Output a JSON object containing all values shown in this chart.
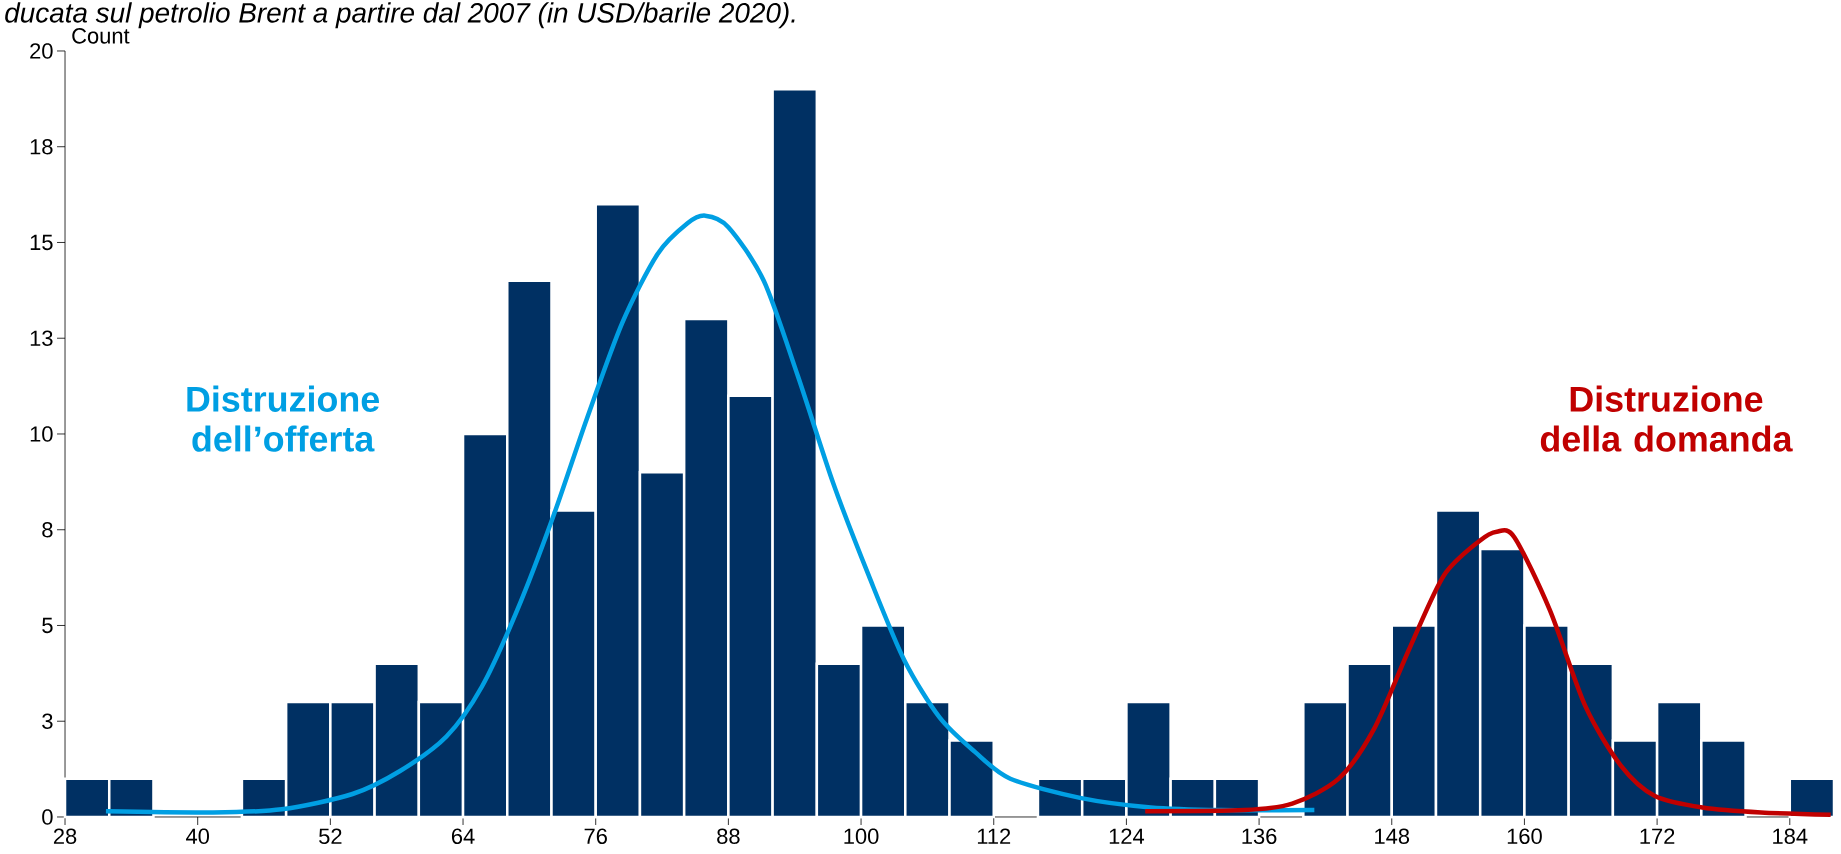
{
  "chart_data": {
    "type": "histogram",
    "title": "ducata sul petrolio Brent a partire dal 2007 (in USD/barile 2020).",
    "ylabel": "Count",
    "bins": [
      28,
      32,
      36,
      40,
      44,
      48,
      52,
      56,
      60,
      64,
      68,
      72,
      76,
      80,
      84,
      88,
      92,
      96,
      100,
      104,
      108,
      112,
      116,
      120,
      124,
      128,
      132,
      136,
      140,
      144,
      148,
      152,
      156,
      160,
      164,
      168,
      172,
      176,
      180,
      184,
      188
    ],
    "values": [
      1,
      1,
      0,
      0,
      1,
      3,
      3,
      4,
      3,
      10,
      14,
      8,
      16,
      9,
      13,
      11,
      19,
      4,
      5,
      3,
      2,
      0,
      1,
      1,
      3,
      1,
      1,
      0,
      3,
      4,
      5,
      8,
      7,
      5,
      4,
      2,
      3,
      2,
      0,
      1
    ],
    "color": "#003063",
    "series": [
      {
        "type": "line",
        "name": "Distruzione dell’offerta",
        "color": "#009fe3",
        "x": [
          31.7,
          41.3,
          47.6,
          54,
          58.3,
          62.5,
          65.7,
          68.9,
          72.1,
          75.2,
          78.4,
          81.6,
          84.3,
          85.9,
          88,
          91.2,
          94.3,
          97.5,
          100.7,
          103.9,
          107.1,
          110.3,
          113.5,
          119.8,
          126.2,
          132.6,
          141
        ],
        "values": [
          0.15,
          0.12,
          0.2,
          0.6,
          1.2,
          2.1,
          3.4,
          5.4,
          7.8,
          10.4,
          12.9,
          14.7,
          15.5,
          15.7,
          15.4,
          14,
          11.5,
          8.7,
          6.3,
          4.1,
          2.6,
          1.7,
          1.0,
          0.5,
          0.25,
          0.18,
          0.18
        ]
      },
      {
        "type": "line",
        "name": "Distruzione della domanda",
        "color": "#c00000",
        "x": [
          125.7,
          134.7,
          139,
          143.2,
          146.4,
          149.6,
          152.7,
          155.9,
          157.5,
          159.1,
          162.3,
          165.5,
          168.7,
          171.8,
          176.1,
          181.4,
          187.7
        ],
        "values": [
          0.15,
          0.18,
          0.35,
          1.0,
          2.3,
          4.4,
          6.3,
          7.2,
          7.45,
          7.3,
          5.4,
          2.9,
          1.35,
          0.55,
          0.25,
          0.12,
          0.06
        ]
      }
    ],
    "xlim": [
      28,
      188
    ],
    "ylim": [
      0,
      20
    ],
    "xticks": [
      28,
      40,
      52,
      64,
      76,
      88,
      100,
      112,
      124,
      136,
      148,
      160,
      172,
      184
    ],
    "yticks": [
      0,
      {
        "value": 2.5,
        "label": "3"
      },
      5,
      {
        "value": 7.5,
        "label": "8"
      },
      10,
      {
        "value": 12.5,
        "label": "13"
      },
      15,
      {
        "value": 17.5,
        "label": "18"
      },
      20
    ],
    "grid": false
  }
}
